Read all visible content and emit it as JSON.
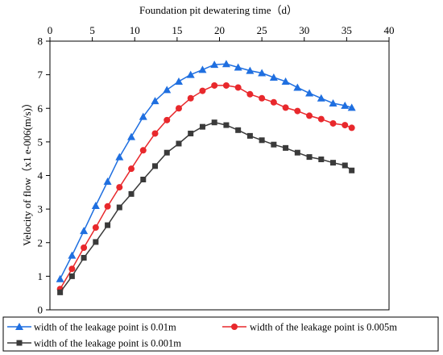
{
  "chart_data": {
    "type": "line",
    "title": "",
    "xlabel": "Foundation pit dewatering time（d）",
    "ylabel": "Velocity of flow（x1 e-006(m/s)）",
    "xlim": [
      0,
      40
    ],
    "ylim": [
      0,
      8
    ],
    "xticks": [
      0,
      5,
      10,
      15,
      20,
      25,
      30,
      35,
      40
    ],
    "yticks": [
      0,
      1,
      2,
      3,
      4,
      5,
      6,
      7,
      8
    ],
    "x_axis_position": "top",
    "grid": false,
    "legend_position": "bottom",
    "series": [
      {
        "name": "width of the leakage point is 0.01m",
        "color": "#1f6fe0",
        "marker": "triangle",
        "x": [
          1.2,
          2.6,
          4.0,
          5.4,
          6.8,
          8.2,
          9.6,
          11.0,
          12.4,
          13.8,
          15.2,
          16.6,
          18.0,
          19.4,
          20.8,
          22.2,
          23.6,
          25.0,
          26.4,
          27.8,
          29.2,
          30.6,
          32.0,
          33.4,
          34.8,
          35.6
        ],
        "y": [
          0.92,
          1.62,
          2.35,
          3.1,
          3.82,
          4.55,
          5.15,
          5.75,
          6.22,
          6.55,
          6.8,
          7.0,
          7.15,
          7.3,
          7.32,
          7.22,
          7.12,
          7.05,
          6.92,
          6.8,
          6.62,
          6.45,
          6.3,
          6.15,
          6.08,
          6.02
        ]
      },
      {
        "name": "width of the leakage point is 0.005m",
        "color": "#e8282c",
        "marker": "circle",
        "x": [
          1.2,
          2.6,
          4.0,
          5.4,
          6.8,
          8.2,
          9.6,
          11.0,
          12.4,
          13.8,
          15.2,
          16.6,
          18.0,
          19.4,
          20.8,
          22.2,
          23.6,
          25.0,
          26.4,
          27.8,
          29.2,
          30.6,
          32.0,
          33.4,
          34.8,
          35.6
        ],
        "y": [
          0.62,
          1.22,
          1.85,
          2.45,
          3.08,
          3.65,
          4.2,
          4.75,
          5.25,
          5.65,
          6.0,
          6.3,
          6.52,
          6.68,
          6.68,
          6.62,
          6.42,
          6.3,
          6.18,
          6.02,
          5.92,
          5.78,
          5.68,
          5.55,
          5.5,
          5.42
        ]
      },
      {
        "name": "width of the leakage point is 0.001m",
        "color": "#3a3a3a",
        "marker": "square",
        "x": [
          1.2,
          2.6,
          4.0,
          5.4,
          6.8,
          8.2,
          9.6,
          11.0,
          12.4,
          13.8,
          15.2,
          16.6,
          18.0,
          19.4,
          20.8,
          22.2,
          23.6,
          25.0,
          26.4,
          27.8,
          29.2,
          30.6,
          32.0,
          33.4,
          34.8,
          35.6
        ],
        "y": [
          0.52,
          1.0,
          1.55,
          2.02,
          2.52,
          3.05,
          3.45,
          3.88,
          4.28,
          4.68,
          4.95,
          5.25,
          5.45,
          5.58,
          5.5,
          5.35,
          5.18,
          5.05,
          4.92,
          4.82,
          4.68,
          4.55,
          4.48,
          4.38,
          4.3,
          4.15
        ]
      }
    ]
  }
}
